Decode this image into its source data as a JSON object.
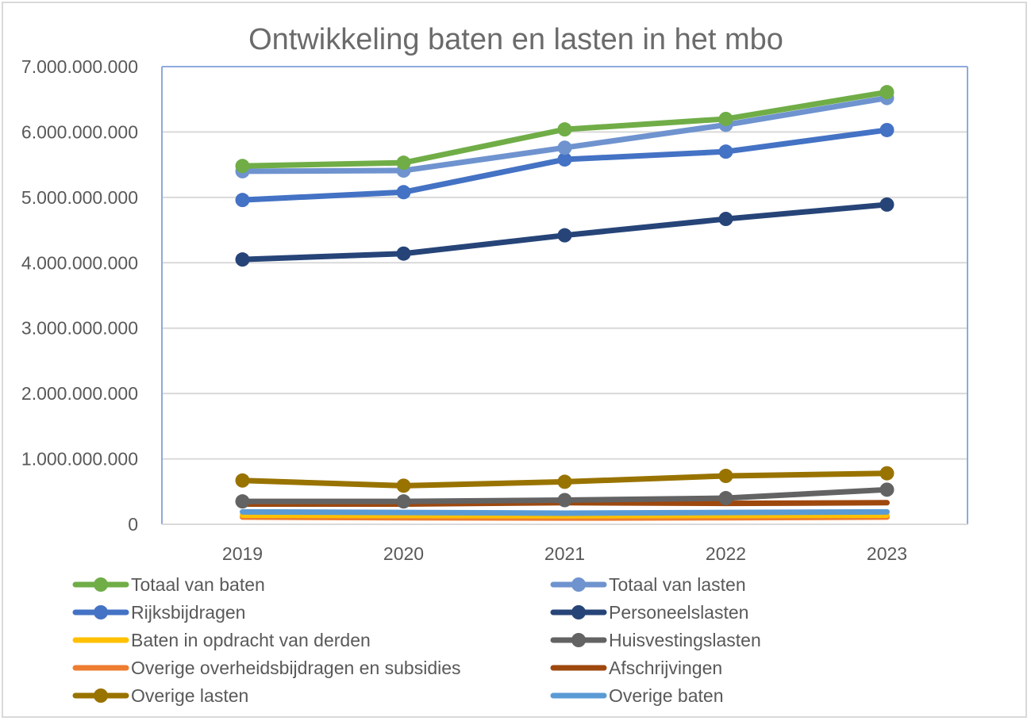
{
  "chart_data": {
    "type": "line",
    "title": "Ontwikkeling baten en lasten in het mbo",
    "xlabel": "",
    "ylabel": "",
    "categories": [
      "2019",
      "2020",
      "2021",
      "2022",
      "2023"
    ],
    "ylim": [
      0,
      7000000000
    ],
    "yticks": [
      0,
      1000000000,
      2000000000,
      3000000000,
      4000000000,
      5000000000,
      6000000000,
      7000000000
    ],
    "ytick_labels": [
      "0",
      "1.000.000.000",
      "2.000.000.000",
      "3.000.000.000",
      "4.000.000.000",
      "5.000.000.000",
      "6.000.000.000",
      "7.000.000.000"
    ],
    "grid": true,
    "legend_position": "bottom",
    "series": [
      {
        "name": "Totaal van baten",
        "color": "#70ad47",
        "markers": true,
        "values": [
          5480000000,
          5530000000,
          6040000000,
          6200000000,
          6610000000
        ]
      },
      {
        "name": "Totaal van lasten",
        "color": "#6f93cf",
        "markers": true,
        "values": [
          5400000000,
          5410000000,
          5760000000,
          6110000000,
          6520000000
        ]
      },
      {
        "name": "Rijksbijdragen",
        "color": "#4472c4",
        "markers": true,
        "values": [
          4960000000,
          5080000000,
          5580000000,
          5700000000,
          6030000000
        ]
      },
      {
        "name": "Personeelslasten",
        "color": "#264478",
        "markers": true,
        "values": [
          4050000000,
          4140000000,
          4420000000,
          4670000000,
          4890000000
        ]
      },
      {
        "name": "Baten in opdracht van derden",
        "color": "#ffc000",
        "markers": false,
        "values": [
          140000000,
          135000000,
          130000000,
          135000000,
          140000000
        ]
      },
      {
        "name": "Huisvestingslasten",
        "color": "#636363",
        "markers": true,
        "values": [
          350000000,
          350000000,
          370000000,
          400000000,
          530000000
        ]
      },
      {
        "name": "Overige overheidsbijdragen en subsidies",
        "color": "#ed7d31",
        "markers": false,
        "values": [
          110000000,
          100000000,
          95000000,
          100000000,
          110000000
        ]
      },
      {
        "name": "Afschrijvingen",
        "color": "#9e480e",
        "markers": false,
        "values": [
          310000000,
          310000000,
          330000000,
          320000000,
          330000000
        ]
      },
      {
        "name": "Overige lasten",
        "color": "#997300",
        "markers": true,
        "values": [
          670000000,
          590000000,
          650000000,
          740000000,
          780000000
        ]
      },
      {
        "name": "Overige baten",
        "color": "#5b9bd5",
        "markers": false,
        "values": [
          190000000,
          180000000,
          170000000,
          180000000,
          190000000
        ]
      }
    ]
  },
  "colors": {
    "plot_border": "#8eaadb",
    "gridline": "#d9d9d9",
    "text": "#595959"
  }
}
